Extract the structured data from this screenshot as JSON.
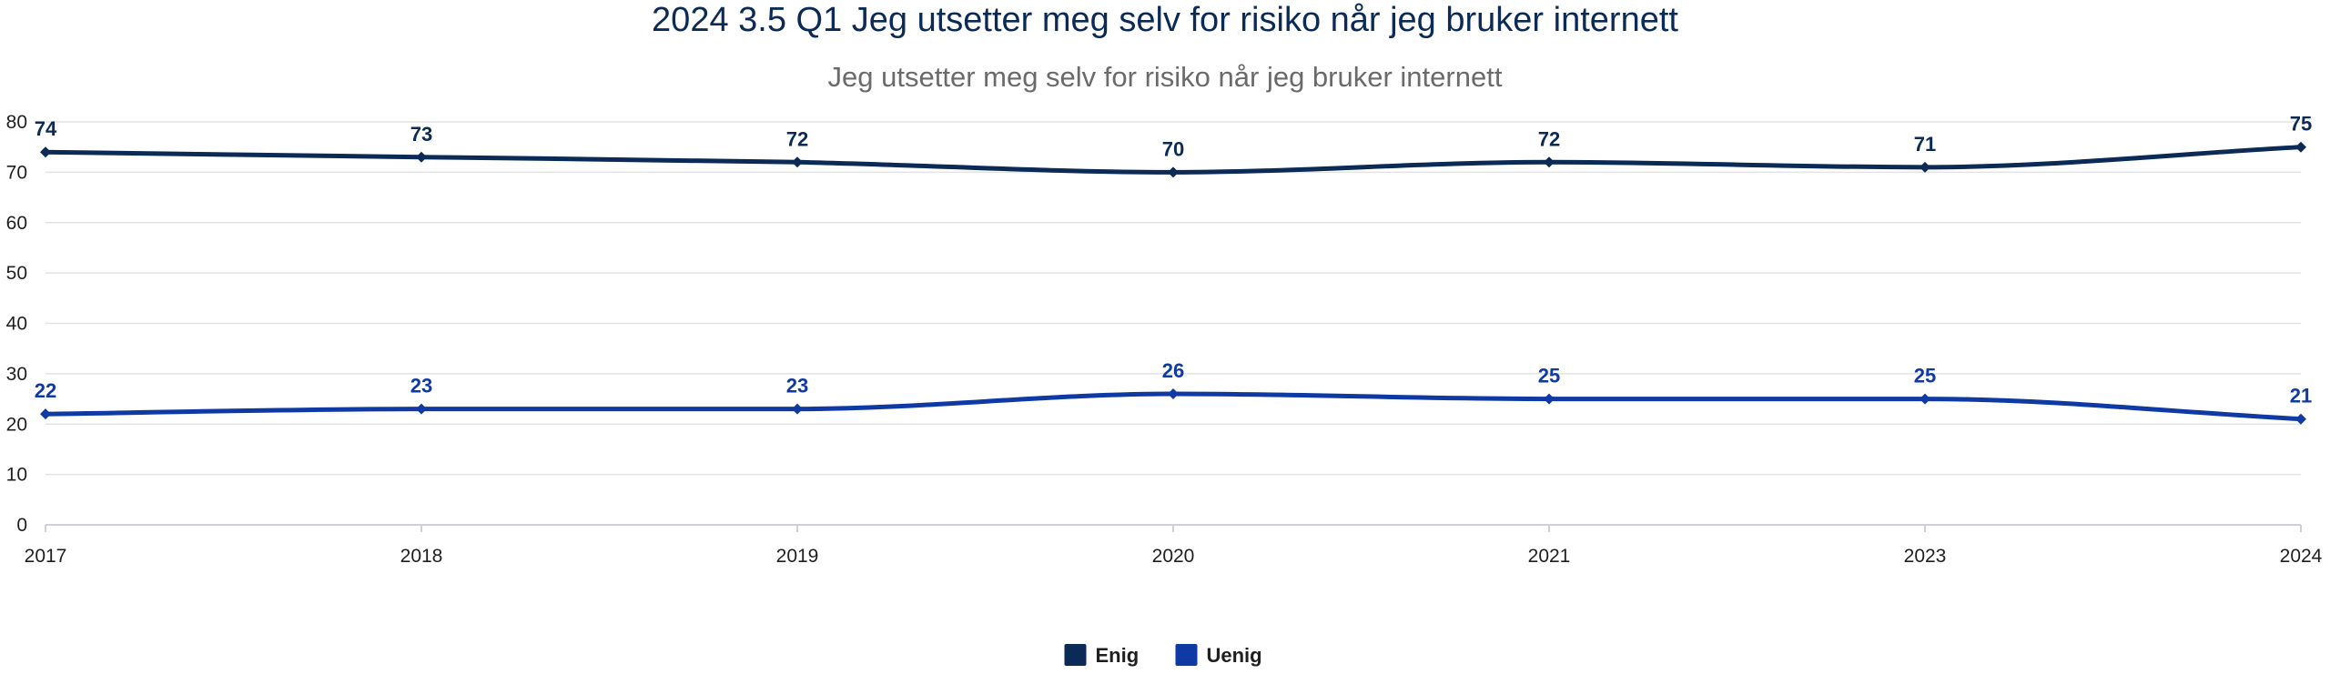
{
  "chart_data": {
    "type": "line",
    "title": "2024 3.5 Q1 Jeg utsetter meg selv for risiko når jeg bruker internett",
    "subtitle": "Jeg utsetter meg selv for risiko når jeg bruker internett",
    "categories": [
      "2017",
      "2018",
      "2019",
      "2020",
      "2021",
      "2023",
      "2024"
    ],
    "series": [
      {
        "name": "Enig",
        "values": [
          74,
          73,
          72,
          70,
          72,
          71,
          75
        ],
        "color": "#0b2a55"
      },
      {
        "name": "Uenig",
        "values": [
          22,
          23,
          23,
          26,
          25,
          25,
          21
        ],
        "color": "#0f3aa3"
      }
    ],
    "ylim": [
      0,
      80
    ],
    "yticks": [
      0,
      10,
      20,
      30,
      40,
      50,
      60,
      70,
      80
    ],
    "grid": true,
    "smooth": true,
    "data_labels": true,
    "legend_position": "bottom-center",
    "title_color": "#0b2a55",
    "subtitle_color": "#6a6a6a"
  }
}
